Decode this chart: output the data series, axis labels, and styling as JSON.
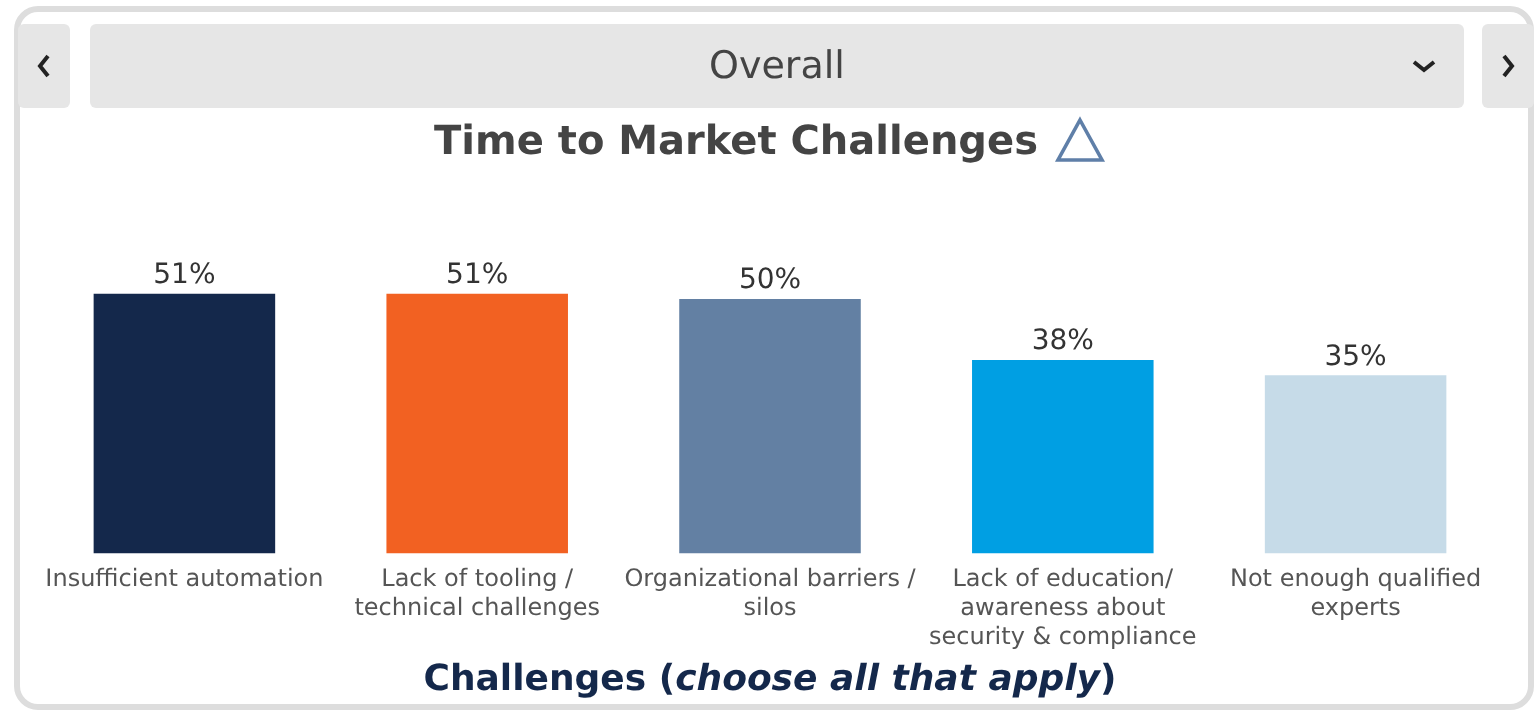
{
  "chart_data": {
    "type": "bar",
    "title": "Time to Market Challenges",
    "xlabel": "Challenges (choose all that apply)",
    "annotations": [
      "Overall"
    ],
    "categories": [
      "Insufficient automation",
      "Lack of tooling / technical challenges",
      "Organizational barriers / silos",
      "Lack of education/ awareness about security & compliance",
      "Not enough qualified experts"
    ],
    "values": [
      51,
      51,
      50,
      38,
      35
    ],
    "colors": [
      "#14284b",
      "#f26122",
      "#6380a3",
      "#009fe3",
      "#c6dbe8"
    ],
    "value_labels": [
      "51%",
      "51%",
      "50%",
      "38%",
      "35%"
    ],
    "grid": false,
    "legend": false
  }
}
